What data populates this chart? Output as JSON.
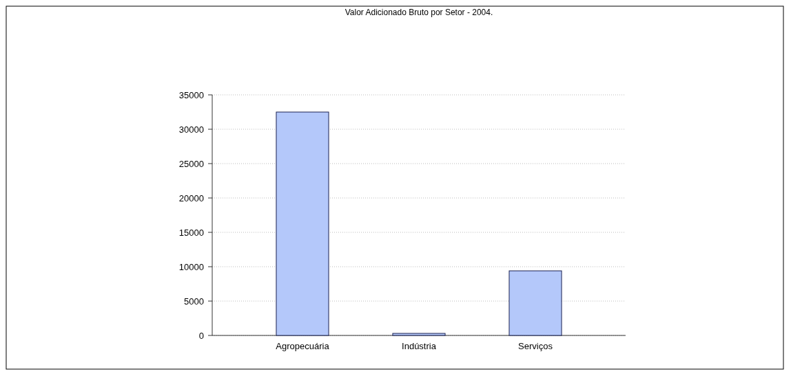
{
  "chart_data": {
    "type": "bar",
    "title": "Valor Adicionado Bruto por Setor - 2004.",
    "categories": [
      "Agropecuária",
      "Indústria",
      "Serviços"
    ],
    "values": [
      32500,
      300,
      9400
    ],
    "color": "#b4c8fa",
    "ylim": [
      0,
      35000
    ],
    "yticks": [
      0,
      5000,
      10000,
      15000,
      20000,
      25000,
      30000,
      35000
    ],
    "grid": true
  }
}
